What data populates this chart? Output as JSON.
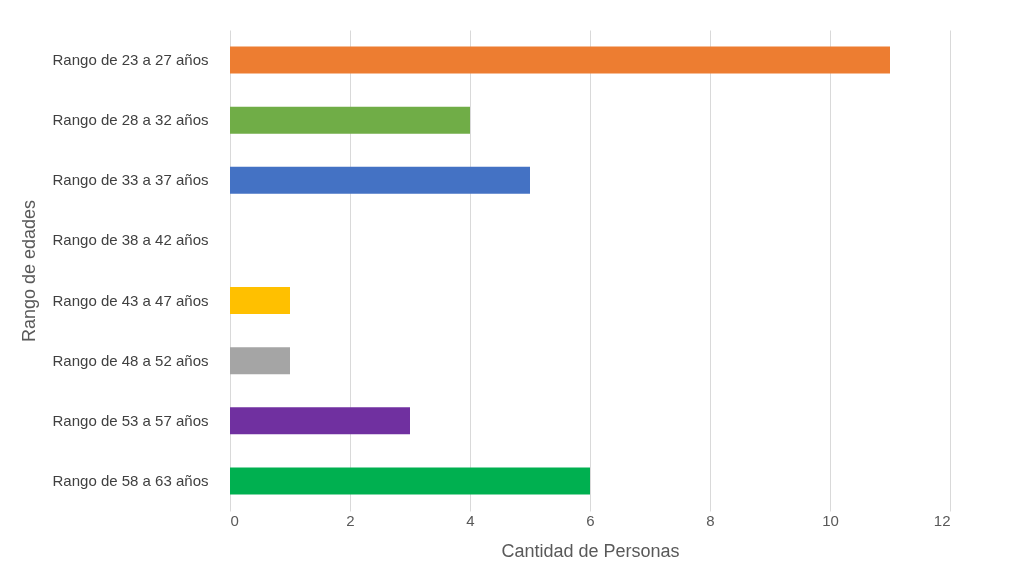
{
  "chart_data": {
    "type": "bar",
    "orientation": "horizontal",
    "xlabel": "Cantidad de Personas",
    "ylabel": "Rango de edades",
    "categories": [
      "Rango de 23 a 27 años",
      "Rango de 28 a 32 años",
      "Rango de 33 a 37 años",
      "Rango de 38 a 42 años",
      "Rango de 43 a 47 años",
      "Rango de 48 a 52 años",
      "Rango de 53 a 57 años",
      "Rango de 58 a 63 años"
    ],
    "values": [
      11,
      4,
      5,
      0,
      1,
      1,
      3,
      6
    ],
    "colors": [
      "#ed7d31",
      "#70ad47",
      "#4472c4",
      "#264478",
      "#ffc000",
      "#a5a5a5",
      "#7030a0",
      "#00b050"
    ],
    "xlim": [
      0,
      12
    ],
    "xticks": [
      0,
      2,
      4,
      6,
      8,
      10,
      12
    ],
    "grid": "x"
  }
}
